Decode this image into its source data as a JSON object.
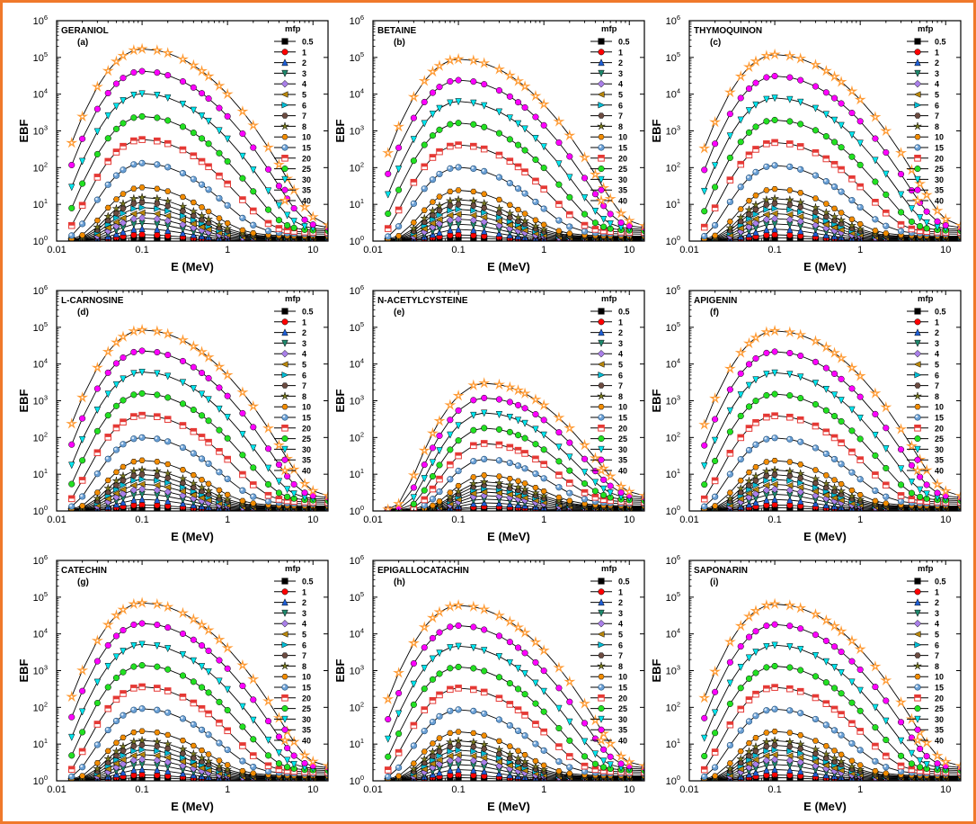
{
  "figure": {
    "border_color": "#f0792b"
  },
  "chart_data": [
    {
      "type": "line",
      "panel_letter": "(a)",
      "title": "GERANIOL",
      "xlabel": "E (MeV)",
      "ylabel": "EBF",
      "peak_energy": 0.1,
      "peak_top": 170000
    },
    {
      "type": "line",
      "panel_letter": "(b)",
      "title": "BETAINE",
      "xlabel": "E (MeV)",
      "ylabel": "EBF",
      "peak_energy": 0.1,
      "peak_top": 90000
    },
    {
      "type": "line",
      "panel_letter": "(c)",
      "title": "THYMOQUINON",
      "xlabel": "E (MeV)",
      "ylabel": "EBF",
      "peak_energy": 0.1,
      "peak_top": 120000
    },
    {
      "type": "line",
      "panel_letter": "(d)",
      "title": "L-CARNOSINE",
      "xlabel": "E (MeV)",
      "ylabel": "EBF",
      "peak_energy": 0.1,
      "peak_top": 85000
    },
    {
      "type": "line",
      "panel_letter": "(e)",
      "title": "N-ACETYLCYSTEINE",
      "xlabel": "E (MeV)",
      "ylabel": "EBF",
      "peak_energy": 0.2,
      "peak_top": 3000
    },
    {
      "type": "line",
      "panel_letter": "(f)",
      "title": "APIGENIN",
      "xlabel": "E (MeV)",
      "ylabel": "EBF",
      "peak_energy": 0.1,
      "peak_top": 80000
    },
    {
      "type": "line",
      "panel_letter": "(g)",
      "title": "CATECHIN",
      "xlabel": "E (MeV)",
      "ylabel": "EBF",
      "peak_energy": 0.1,
      "peak_top": 70000
    },
    {
      "type": "line",
      "panel_letter": "(h)",
      "title": "EPIGALLOCATACHIN",
      "xlabel": "E (MeV)",
      "ylabel": "EBF",
      "peak_energy": 0.1,
      "peak_top": 60000
    },
    {
      "type": "line",
      "panel_letter": "(i)",
      "title": "SAPONARIN",
      "xlabel": "E (MeV)",
      "ylabel": "EBF",
      "peak_energy": 0.1,
      "peak_top": 65000
    }
  ],
  "shared": {
    "energies": [
      0.015,
      0.02,
      0.03,
      0.04,
      0.05,
      0.06,
      0.08,
      0.1,
      0.15,
      0.2,
      0.3,
      0.4,
      0.5,
      0.6,
      0.8,
      1,
      1.5,
      2,
      3,
      4,
      5,
      6,
      8,
      10,
      15
    ],
    "xlim": [
      0.01,
      15
    ],
    "ylim": [
      1,
      1000000
    ],
    "x_ticks": [
      "0.01",
      "0.1",
      "1",
      "10"
    ],
    "x_tick_values": [
      0.01,
      0.1,
      1,
      10
    ],
    "y_tick_bases": [
      "10",
      "10",
      "10",
      "10",
      "10",
      "10",
      "10"
    ],
    "y_tick_exponents": [
      "0",
      "1",
      "2",
      "3",
      "4",
      "5",
      "6"
    ],
    "legend_title": "mfp",
    "legend": [
      {
        "label": "0.5",
        "mfp": 0.5,
        "color": "#000000",
        "marker": "square"
      },
      {
        "label": "1",
        "mfp": 1,
        "color": "#ff0000",
        "marker": "circle"
      },
      {
        "label": "2",
        "mfp": 2,
        "color": "#1f5fd6",
        "marker": "triangle-up"
      },
      {
        "label": "3",
        "mfp": 3,
        "color": "#1e8a6e",
        "marker": "triangle-down"
      },
      {
        "label": "4",
        "mfp": 4,
        "color": "#a97fe8",
        "marker": "diamond"
      },
      {
        "label": "5",
        "mfp": 5,
        "color": "#b8860b",
        "marker": "triangle-left"
      },
      {
        "label": "6",
        "mfp": 6,
        "color": "#00bcd4",
        "marker": "triangle-right"
      },
      {
        "label": "7",
        "mfp": 7,
        "color": "#6d4c41",
        "marker": "hexagon"
      },
      {
        "label": "8",
        "mfp": 8,
        "color": "#7a7a1e",
        "marker": "star"
      },
      {
        "label": "10",
        "mfp": 10,
        "color": "#f28c00",
        "marker": "hexagon"
      },
      {
        "label": "15",
        "mfp": 15,
        "color": "#6a9fd4",
        "marker": "sphere"
      },
      {
        "label": "20",
        "mfp": 20,
        "color": "#e53935",
        "marker": "half-square"
      },
      {
        "label": "25",
        "mfp": 25,
        "color": "#22e022",
        "marker": "circle"
      },
      {
        "label": "30",
        "mfp": 30,
        "color": "#00e5ee",
        "marker": "triangle-down"
      },
      {
        "label": "35",
        "mfp": 35,
        "color": "#ff00ff",
        "marker": "circle"
      },
      {
        "label": "40",
        "mfp": 40,
        "color": "#ff9a33",
        "marker": "star-open"
      }
    ]
  }
}
